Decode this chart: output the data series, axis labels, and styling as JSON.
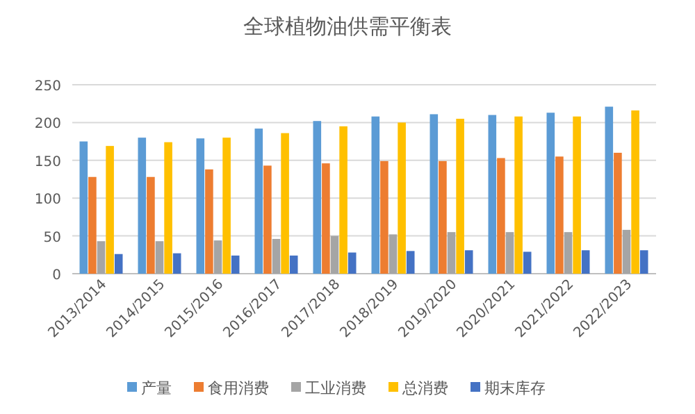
{
  "chart_data": {
    "type": "bar",
    "title": "全球植物油供需平衡表",
    "categories": [
      "2013/2014",
      "2014/2015",
      "2015/2016",
      "2016/2017",
      "2017/2018",
      "2018/2019",
      "2019/2020",
      "2020/2021",
      "2021/2022",
      "2022/2023"
    ],
    "series": [
      {
        "name": "产量",
        "color": "#5b9bd5",
        "values": [
          175,
          180,
          179,
          192,
          202,
          208,
          211,
          210,
          213,
          221
        ]
      },
      {
        "name": "食用消费",
        "color": "#ed7d31",
        "values": [
          128,
          128,
          138,
          143,
          146,
          149,
          149,
          153,
          155,
          160
        ]
      },
      {
        "name": "工业消费",
        "color": "#a5a5a5",
        "values": [
          43,
          43,
          44,
          46,
          50,
          52,
          55,
          55,
          55,
          58
        ]
      },
      {
        "name": "总消费",
        "color": "#ffc000",
        "values": [
          169,
          174,
          180,
          186,
          195,
          200,
          205,
          208,
          208,
          216
        ]
      },
      {
        "name": "期末库存",
        "color": "#4472c4",
        "values": [
          26,
          27,
          24,
          24,
          28,
          30,
          31,
          29,
          31,
          31
        ]
      }
    ],
    "ylim": [
      0,
      250
    ],
    "yticks": [
      0,
      50,
      100,
      150,
      200,
      250
    ],
    "grid": "y",
    "legend": "bottom"
  }
}
